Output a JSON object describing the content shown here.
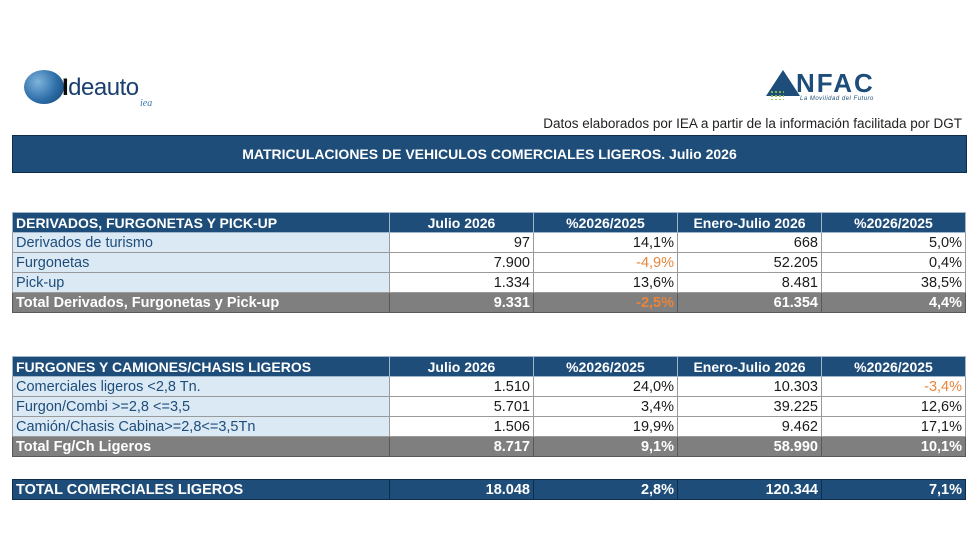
{
  "logos": {
    "left": {
      "brand_bold": "I",
      "brand_rest": "deauto",
      "sub": "iea"
    },
    "right": {
      "brand": "NFAC",
      "tagline": "La Movilidad del Futuro"
    }
  },
  "source_note": "Datos elaborados por IEA a partir de la información facilitada por DGT",
  "title": "MATRICULACIONES DE VEHICULOS COMERCIALES LIGEROS. Julio 2026",
  "colors": {
    "header_bg": "#1e4d7a",
    "total_bg": "#7f7f7f",
    "label_bg": "#dbe9f5",
    "negative": "#e8853a"
  },
  "table1": {
    "header": [
      "DERIVADOS, FURGONETAS Y PICK-UP",
      "Julio 2026",
      "%2026/2025",
      "Enero-Julio 2026",
      "%2026/2025"
    ],
    "rows": [
      [
        "Derivados de turismo",
        "97",
        "14,1%",
        "668",
        "5,0%"
      ],
      [
        "Furgonetas",
        "7.900",
        "-4,9%",
        "52.205",
        "0,4%"
      ],
      [
        "Pick-up",
        "1.334",
        "13,6%",
        "8.481",
        "38,5%"
      ]
    ],
    "total": [
      "Total Derivados, Furgonetas y Pick-up",
      "9.331",
      "-2,5%",
      "61.354",
      "4,4%"
    ]
  },
  "table2": {
    "header": [
      "FURGONES Y CAMIONES/CHASIS LIGEROS",
      "Julio 2026",
      "%2026/2025",
      "Enero-Julio 2026",
      "%2026/2025"
    ],
    "rows": [
      [
        "Comerciales ligeros <2,8 Tn.",
        "1.510",
        "24,0%",
        "10.303",
        "-3,4%"
      ],
      [
        "Furgon/Combi >=2,8 <=3,5",
        "5.701",
        "3,4%",
        "39.225",
        "12,6%"
      ],
      [
        "Camión/Chasis Cabina>=2,8<=3,5Tn",
        "1.506",
        "19,9%",
        "9.462",
        "17,1%"
      ]
    ],
    "total": [
      "Total Fg/Ch Ligeros",
      "8.717",
      "9,1%",
      "58.990",
      "10,1%"
    ]
  },
  "grand_total": [
    "TOTAL COMERCIALES LIGEROS",
    "18.048",
    "2,8%",
    "120.344",
    "7,1%"
  ]
}
